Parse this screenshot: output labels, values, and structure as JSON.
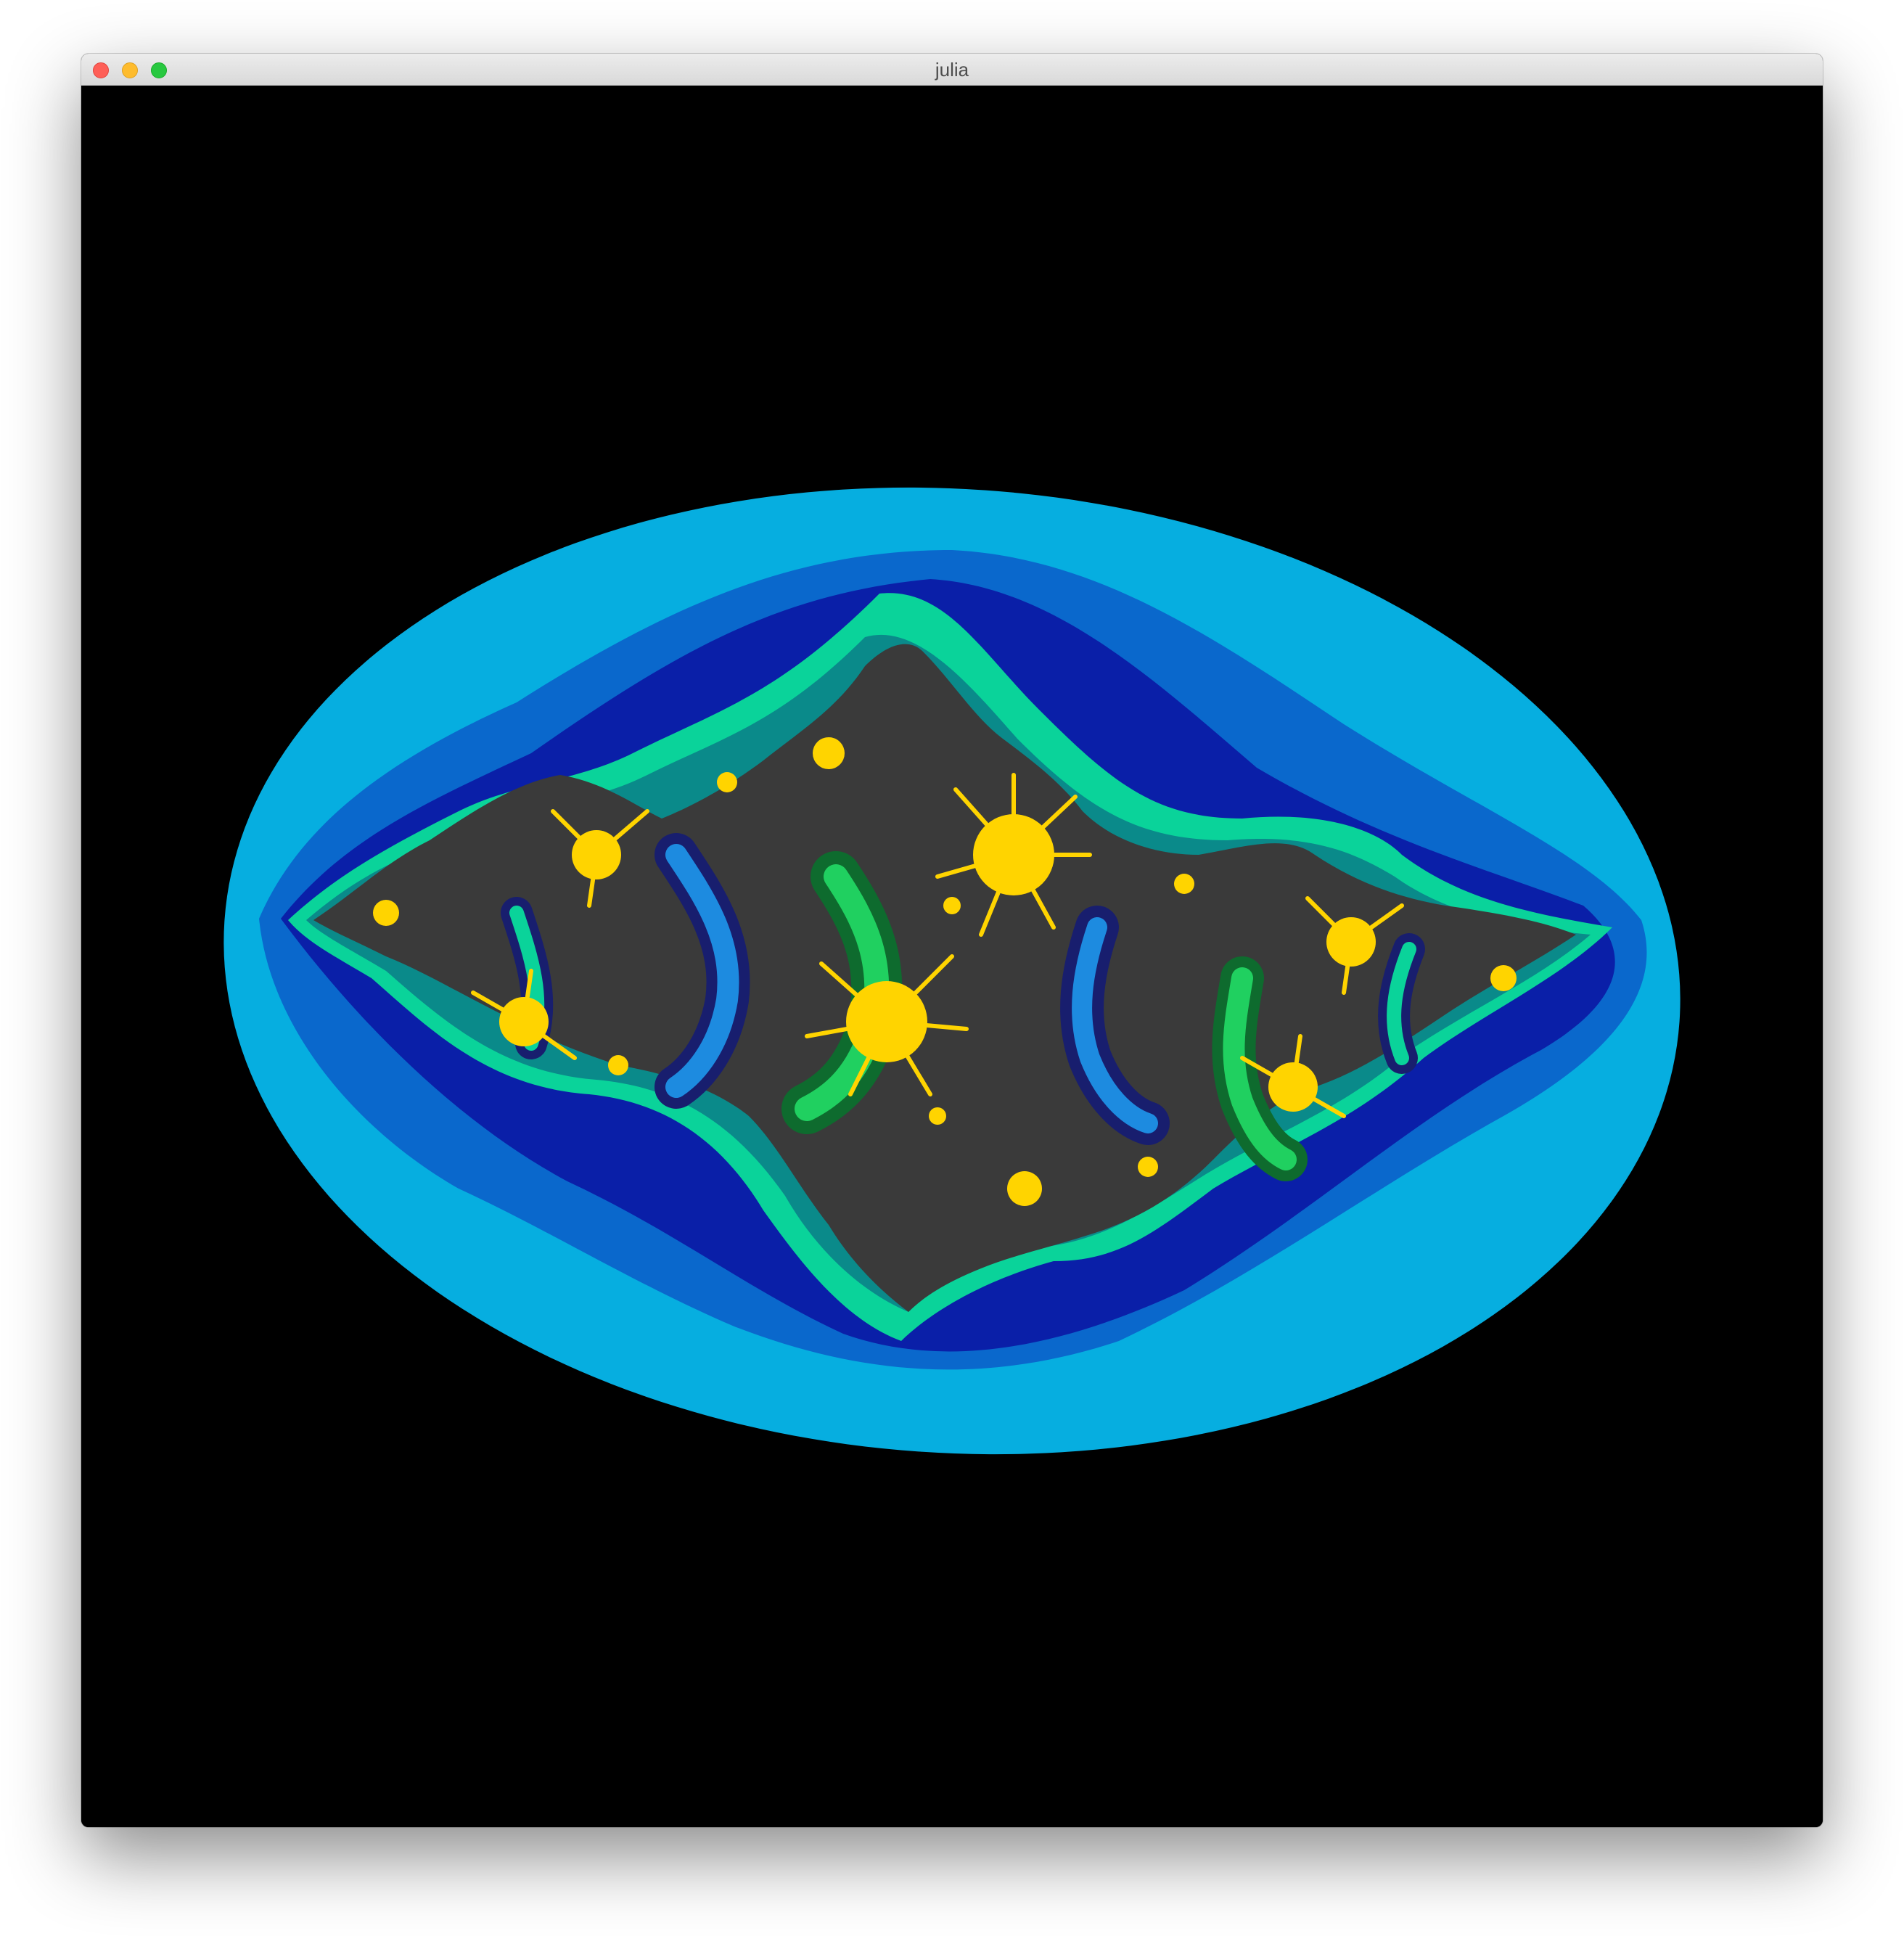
{
  "window": {
    "title": "julia"
  },
  "canvas": {
    "content": "julia-set-fractal",
    "palette": {
      "background": "#000000",
      "outer_band": "#06aee0",
      "band_2": "#0a68cc",
      "band_3": "#0a1fa8",
      "teal": "#0ad39a",
      "dark_teal": "#0a8a8a",
      "green": "#20d060",
      "dark_green": "#0e6b2e",
      "deep_blue": "#181e6e",
      "mid_blue": "#1d8be0",
      "fractal_dark": "#3a3a3a",
      "fractal_gold": "#ffd400"
    }
  }
}
